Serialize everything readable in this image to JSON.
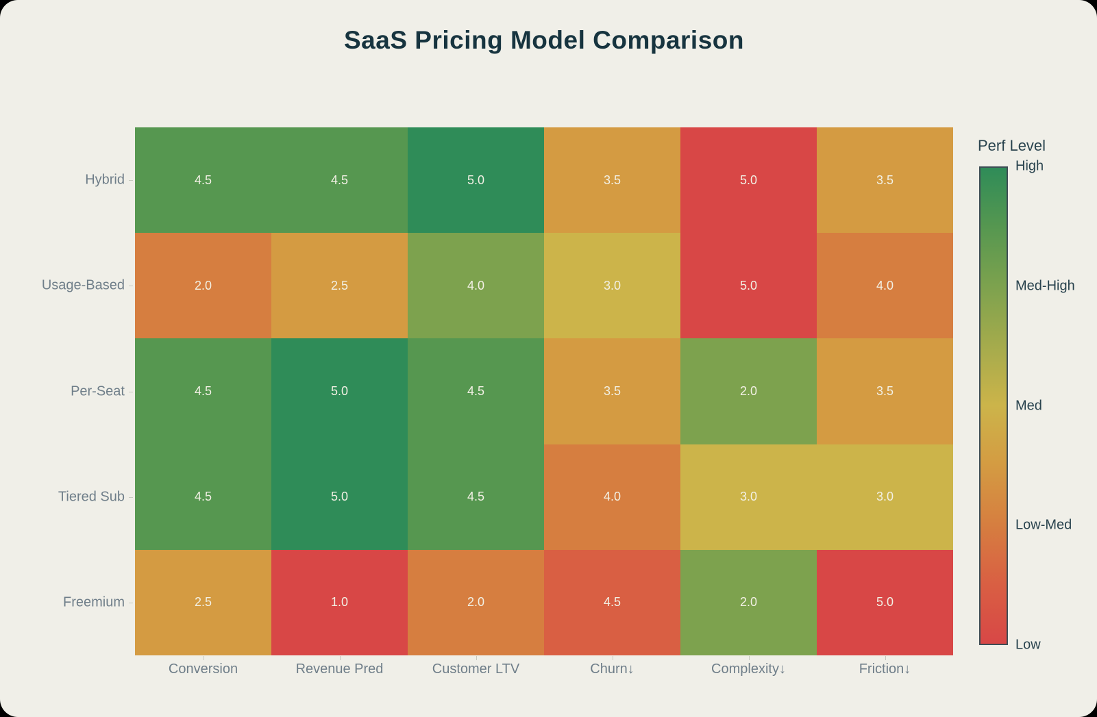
{
  "title": "SaaS Pricing Model Comparison",
  "chart_data": {
    "type": "heatmap",
    "rows": [
      "Hybrid",
      "Usage-Based",
      "Per-Seat",
      "Tiered Sub",
      "Freemium"
    ],
    "columns": [
      "Conversion",
      "Revenue Pred",
      "Customer LTV",
      "Churn↓",
      "Complexity↓",
      "Friction↓"
    ],
    "values": [
      [
        4.5,
        4.5,
        5.0,
        3.5,
        5.0,
        3.5
      ],
      [
        2.0,
        2.5,
        4.0,
        3.0,
        5.0,
        4.0
      ],
      [
        4.5,
        5.0,
        4.5,
        3.5,
        2.0,
        3.5
      ],
      [
        4.5,
        5.0,
        4.5,
        4.0,
        3.0,
        3.0
      ],
      [
        2.5,
        1.0,
        2.0,
        4.5,
        2.0,
        5.0
      ]
    ],
    "cell_colors": [
      [
        "#569750",
        "#569750",
        "#2f8c58",
        "#d49b42",
        "#d84746",
        "#d49b42"
      ],
      [
        "#d67e40",
        "#d49b42",
        "#7da24e",
        "#ccb44a",
        "#d84746",
        "#d67e40"
      ],
      [
        "#569750",
        "#2f8c58",
        "#569750",
        "#d49b42",
        "#7da24e",
        "#d49b42"
      ],
      [
        "#569750",
        "#2f8c58",
        "#569750",
        "#d67e40",
        "#ccb44a",
        "#ccb44a"
      ],
      [
        "#d49b42",
        "#d84746",
        "#d67e40",
        "#d95f43",
        "#7da24e",
        "#d84746"
      ]
    ],
    "legend": {
      "title": "Perf Level",
      "labels": [
        "High",
        "Med-High",
        "Med",
        "Low-Med",
        "Low"
      ],
      "label_positions_pct": [
        0,
        25,
        50,
        75,
        100
      ],
      "gradient_stops": [
        {
          "pos_pct": 0,
          "color": "#2f8c58"
        },
        {
          "pos_pct": 12.5,
          "color": "#569750"
        },
        {
          "pos_pct": 25,
          "color": "#7da24e"
        },
        {
          "pos_pct": 37.5,
          "color": "#a5ab4c"
        },
        {
          "pos_pct": 50,
          "color": "#ccb44a"
        },
        {
          "pos_pct": 62.5,
          "color": "#d49b42"
        },
        {
          "pos_pct": 75,
          "color": "#d67e40"
        },
        {
          "pos_pct": 87.5,
          "color": "#d95f43"
        },
        {
          "pos_pct": 100,
          "color": "#d84746"
        }
      ]
    },
    "layout": {
      "grid": "off",
      "legend_position": "right",
      "value_min": 1.0,
      "value_max": 5.0,
      "color_note_columns_inverted": [
        "Churn↓",
        "Complexity↓",
        "Friction↓"
      ]
    }
  },
  "colors": {
    "background": "#f0efe8",
    "outer_background": "#000000",
    "title_text": "#17343f",
    "axis_text": "#6f7e89",
    "legend_text": "#29434e",
    "cell_text": "#f2f0e4",
    "colorbar_border": "#3e4d55",
    "tick": "#c6c9bf"
  }
}
